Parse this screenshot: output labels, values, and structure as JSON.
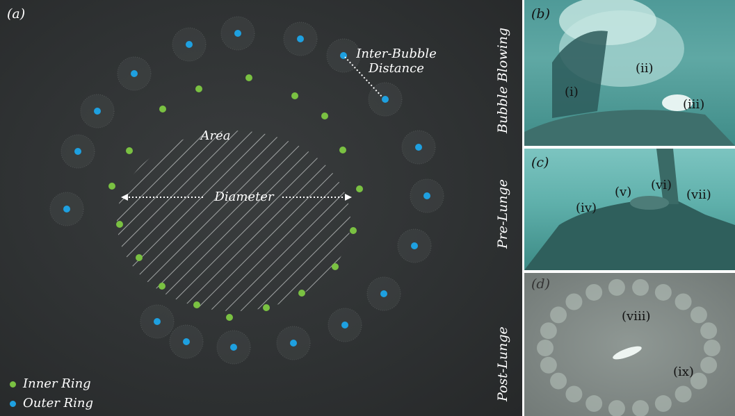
{
  "panels": {
    "a": {
      "label": "(a)"
    },
    "b": {
      "label": "(b)",
      "title": "Bubble Blowing",
      "labels": [
        "(i)",
        "(ii)",
        "(iii)"
      ]
    },
    "c": {
      "label": "(c)",
      "title": "Pre-Lunge",
      "labels": [
        "(iv)",
        "(v)",
        "(vi)",
        "(vii)"
      ]
    },
    "d": {
      "label": "(d)",
      "title": "Post-Lunge",
      "labels": [
        "(viii)",
        "(ix)"
      ]
    }
  },
  "annotations": {
    "inter_bubble_line1": "Inter-Bubble",
    "inter_bubble_line2": "Distance",
    "area": "Area",
    "diameter": "Diameter"
  },
  "legend": {
    "inner": {
      "label": "Inner Ring",
      "color": "#7ac142"
    },
    "outer": {
      "label": "Outer Ring",
      "color": "#1ea0e0"
    }
  },
  "colors": {
    "inner_dot": "#7ac142",
    "outer_dot": "#1ea0e0",
    "water_dark": "#2f3233"
  }
}
